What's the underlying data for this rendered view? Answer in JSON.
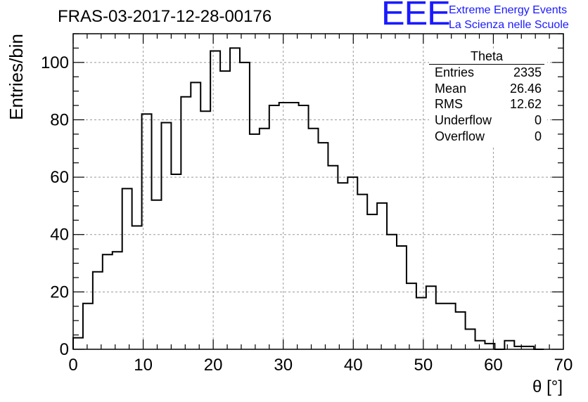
{
  "header": {
    "run_id": "FRAS-03-2017-12-28-00176"
  },
  "logo": {
    "mark": "EEE",
    "line1": "Extreme Energy Events",
    "line2": "La Scienza nelle Scuole",
    "color": "#1a1aff"
  },
  "stats_box": {
    "title": "Theta",
    "rows": [
      {
        "label": "Entries",
        "value": "2335"
      },
      {
        "label": "Mean",
        "value": "26.46"
      },
      {
        "label": "RMS",
        "value": "12.62"
      },
      {
        "label": "Underflow",
        "value": "0"
      },
      {
        "label": "Overflow",
        "value": "0"
      }
    ]
  },
  "chart_data": {
    "type": "bar",
    "style": "step-histogram",
    "title": "FRAS-03-2017-12-28-00176",
    "xlabel": "θ [°]",
    "ylabel": "Entries/bin",
    "xlim": [
      0,
      70
    ],
    "ylim": [
      0,
      110
    ],
    "xticks": [
      0,
      10,
      20,
      30,
      40,
      50,
      60,
      70
    ],
    "yticks": [
      0,
      20,
      40,
      60,
      80,
      100
    ],
    "grid": true,
    "bin_width": 1.4,
    "bin_start": 0,
    "values": [
      4,
      16,
      27,
      33,
      34,
      56,
      43,
      82,
      52,
      79,
      61,
      88,
      93,
      83,
      104,
      97,
      105,
      100,
      75,
      77,
      85,
      86,
      86,
      85,
      77,
      72,
      64,
      58,
      60,
      54,
      47,
      51,
      40,
      36,
      23,
      18,
      22,
      16,
      16,
      13,
      7,
      3,
      2,
      0,
      3,
      1,
      1,
      0
    ],
    "line_color": "#000000"
  }
}
